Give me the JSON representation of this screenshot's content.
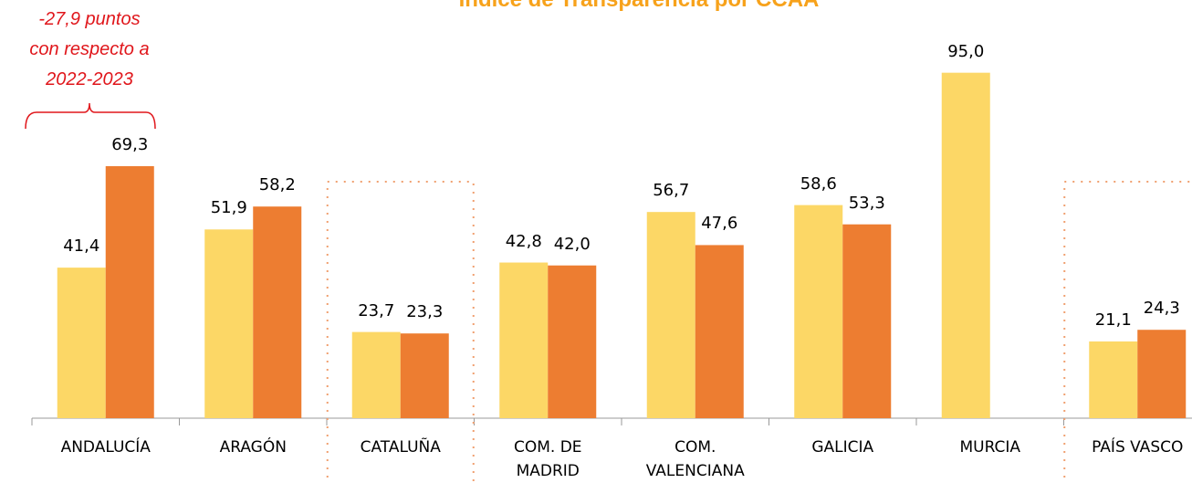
{
  "chart_data": {
    "type": "bar",
    "title": "Índice de Transparencia  por CCAA",
    "annotation": "-27,9 puntos\ncon respecto a\n2022-2023",
    "categories": [
      "ANDALUCÍA",
      "ARAGÓN",
      "CATALUÑA",
      "COM. DE\nMADRID",
      "COM.\nVALENCIANA",
      "GALICIA",
      "MURCIA",
      "PAÍS VASCO"
    ],
    "series": [
      {
        "color": "#FCD766",
        "values": [
          41.4,
          51.9,
          23.7,
          42.8,
          56.7,
          58.6,
          95.0,
          21.1
        ],
        "value_labels": [
          "41,4",
          "51,9",
          "23,7",
          "42,8",
          "56,7",
          "58,6",
          "95,0",
          "21,1"
        ]
      },
      {
        "color": "#ED7D31",
        "values": [
          69.3,
          58.2,
          23.3,
          42.0,
          47.6,
          53.3,
          null,
          24.3
        ],
        "value_labels": [
          "69,3",
          "58,2",
          "23,3",
          "42,0",
          "47,6",
          "53,3",
          null,
          "24,3"
        ]
      }
    ],
    "ylim": [
      0,
      115
    ]
  }
}
